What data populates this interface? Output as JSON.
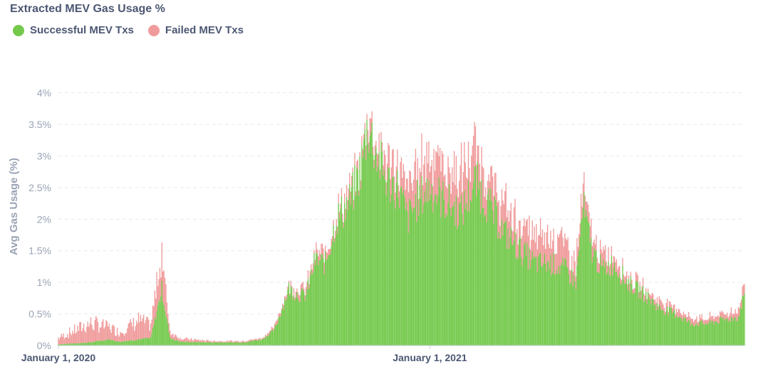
{
  "chart_data": {
    "type": "bar",
    "stacked": true,
    "title": "Extracted MEV Gas Usage %",
    "ylabel": "Avg Gas Usage (%)",
    "xlabel": "",
    "ylim": [
      0,
      4.4
    ],
    "yticks": [
      "0%",
      "0.5%",
      "1%",
      "1.5%",
      "2%",
      "2.5%",
      "3%",
      "3.5%",
      "4%"
    ],
    "ytick_values": [
      0,
      0.5,
      1,
      1.5,
      2,
      2.5,
      3,
      3.5,
      4
    ],
    "xticks": [
      {
        "label": "January 1, 2020",
        "x": "2020-01-01"
      },
      {
        "label": "January 1, 2021",
        "x": "2021-01-01"
      }
    ],
    "x_range": [
      "2020-01-01",
      "2021-11-07"
    ],
    "granularity": "daily",
    "grid": "horizontal",
    "legend_position": "top-left",
    "colors": {
      "successful": "#74c94c",
      "failed": "#f09b9b",
      "grid": "#e6e9ee",
      "text": "#4c5773",
      "axis_text": "#9aa3b5"
    },
    "series": [
      {
        "name": "Successful MEV Txs",
        "color": "#74c94c",
        "points": [
          [
            "2020-01-01",
            0.02
          ],
          [
            "2020-02-01",
            0.05
          ],
          [
            "2020-02-20",
            0.1
          ],
          [
            "2020-03-01",
            0.06
          ],
          [
            "2020-03-20",
            0.1
          ],
          [
            "2020-04-01",
            0.12
          ],
          [
            "2020-04-12",
            0.9
          ],
          [
            "2020-04-20",
            0.12
          ],
          [
            "2020-05-01",
            0.06
          ],
          [
            "2020-06-01",
            0.05
          ],
          [
            "2020-07-01",
            0.05
          ],
          [
            "2020-07-20",
            0.1
          ],
          [
            "2020-08-01",
            0.25
          ],
          [
            "2020-08-15",
            0.9
          ],
          [
            "2020-08-25",
            0.8
          ],
          [
            "2020-09-01",
            0.8
          ],
          [
            "2020-09-10",
            1.35
          ],
          [
            "2020-09-20",
            1.3
          ],
          [
            "2020-10-01",
            2.0
          ],
          [
            "2020-10-15",
            2.3
          ],
          [
            "2020-10-25",
            2.8
          ],
          [
            "2020-11-01",
            3.5
          ],
          [
            "2020-11-10",
            3.0
          ],
          [
            "2020-11-20",
            2.6
          ],
          [
            "2020-12-01",
            2.5
          ],
          [
            "2020-12-10",
            2.0
          ],
          [
            "2020-12-20",
            2.3
          ],
          [
            "2021-01-01",
            2.5
          ],
          [
            "2021-01-15",
            2.3
          ],
          [
            "2021-02-01",
            2.1
          ],
          [
            "2021-02-15",
            2.6
          ],
          [
            "2021-03-01",
            2.2
          ],
          [
            "2021-03-15",
            1.8
          ],
          [
            "2021-04-01",
            1.5
          ],
          [
            "2021-04-15",
            1.3
          ],
          [
            "2021-05-01",
            1.3
          ],
          [
            "2021-05-15",
            1.2
          ],
          [
            "2021-05-25",
            1.0
          ],
          [
            "2021-06-01",
            2.2
          ],
          [
            "2021-06-10",
            1.5
          ],
          [
            "2021-06-20",
            1.2
          ],
          [
            "2021-07-01",
            1.3
          ],
          [
            "2021-07-15",
            1.0
          ],
          [
            "2021-08-01",
            0.8
          ],
          [
            "2021-08-15",
            0.6
          ],
          [
            "2021-09-01",
            0.5
          ],
          [
            "2021-09-15",
            0.35
          ],
          [
            "2021-10-01",
            0.35
          ],
          [
            "2021-10-15",
            0.4
          ],
          [
            "2021-11-01",
            0.45
          ],
          [
            "2021-11-07",
            0.85
          ]
        ]
      },
      {
        "name": "Failed MEV Txs",
        "color": "#f09b9b",
        "points": [
          [
            "2020-01-01",
            0.1
          ],
          [
            "2020-02-01",
            0.3
          ],
          [
            "2020-02-20",
            0.2
          ],
          [
            "2020-03-01",
            0.15
          ],
          [
            "2020-03-20",
            0.3
          ],
          [
            "2020-04-01",
            0.2
          ],
          [
            "2020-04-12",
            0.6
          ],
          [
            "2020-04-20",
            0.1
          ],
          [
            "2020-05-01",
            0.05
          ],
          [
            "2020-06-01",
            0.02
          ],
          [
            "2020-07-01",
            0.02
          ],
          [
            "2020-07-20",
            0.02
          ],
          [
            "2020-08-01",
            0.05
          ],
          [
            "2020-08-15",
            0.05
          ],
          [
            "2020-08-25",
            0.1
          ],
          [
            "2020-09-01",
            0.1
          ],
          [
            "2020-09-10",
            0.1
          ],
          [
            "2020-09-20",
            0.15
          ],
          [
            "2020-10-01",
            0.1
          ],
          [
            "2020-10-15",
            0.15
          ],
          [
            "2020-10-25",
            0.1
          ],
          [
            "2020-11-01",
            0.2
          ],
          [
            "2020-11-10",
            0.2
          ],
          [
            "2020-11-20",
            0.3
          ],
          [
            "2020-12-01",
            0.3
          ],
          [
            "2020-12-10",
            0.5
          ],
          [
            "2020-12-20",
            0.5
          ],
          [
            "2021-01-01",
            0.6
          ],
          [
            "2021-01-15",
            0.5
          ],
          [
            "2021-02-01",
            0.6
          ],
          [
            "2021-02-15",
            0.5
          ],
          [
            "2021-03-01",
            0.4
          ],
          [
            "2021-03-15",
            0.4
          ],
          [
            "2021-04-01",
            0.4
          ],
          [
            "2021-04-15",
            0.4
          ],
          [
            "2021-05-01",
            0.5
          ],
          [
            "2021-05-15",
            0.4
          ],
          [
            "2021-05-25",
            0.3
          ],
          [
            "2021-06-01",
            0.3
          ],
          [
            "2021-06-10",
            0.2
          ],
          [
            "2021-06-20",
            0.2
          ],
          [
            "2021-07-01",
            0.15
          ],
          [
            "2021-07-15",
            0.1
          ],
          [
            "2021-08-01",
            0.1
          ],
          [
            "2021-08-15",
            0.1
          ],
          [
            "2021-09-01",
            0.1
          ],
          [
            "2021-09-15",
            0.08
          ],
          [
            "2021-10-01",
            0.08
          ],
          [
            "2021-10-15",
            0.1
          ],
          [
            "2021-11-01",
            0.1
          ],
          [
            "2021-11-07",
            0.15
          ]
        ]
      }
    ]
  }
}
